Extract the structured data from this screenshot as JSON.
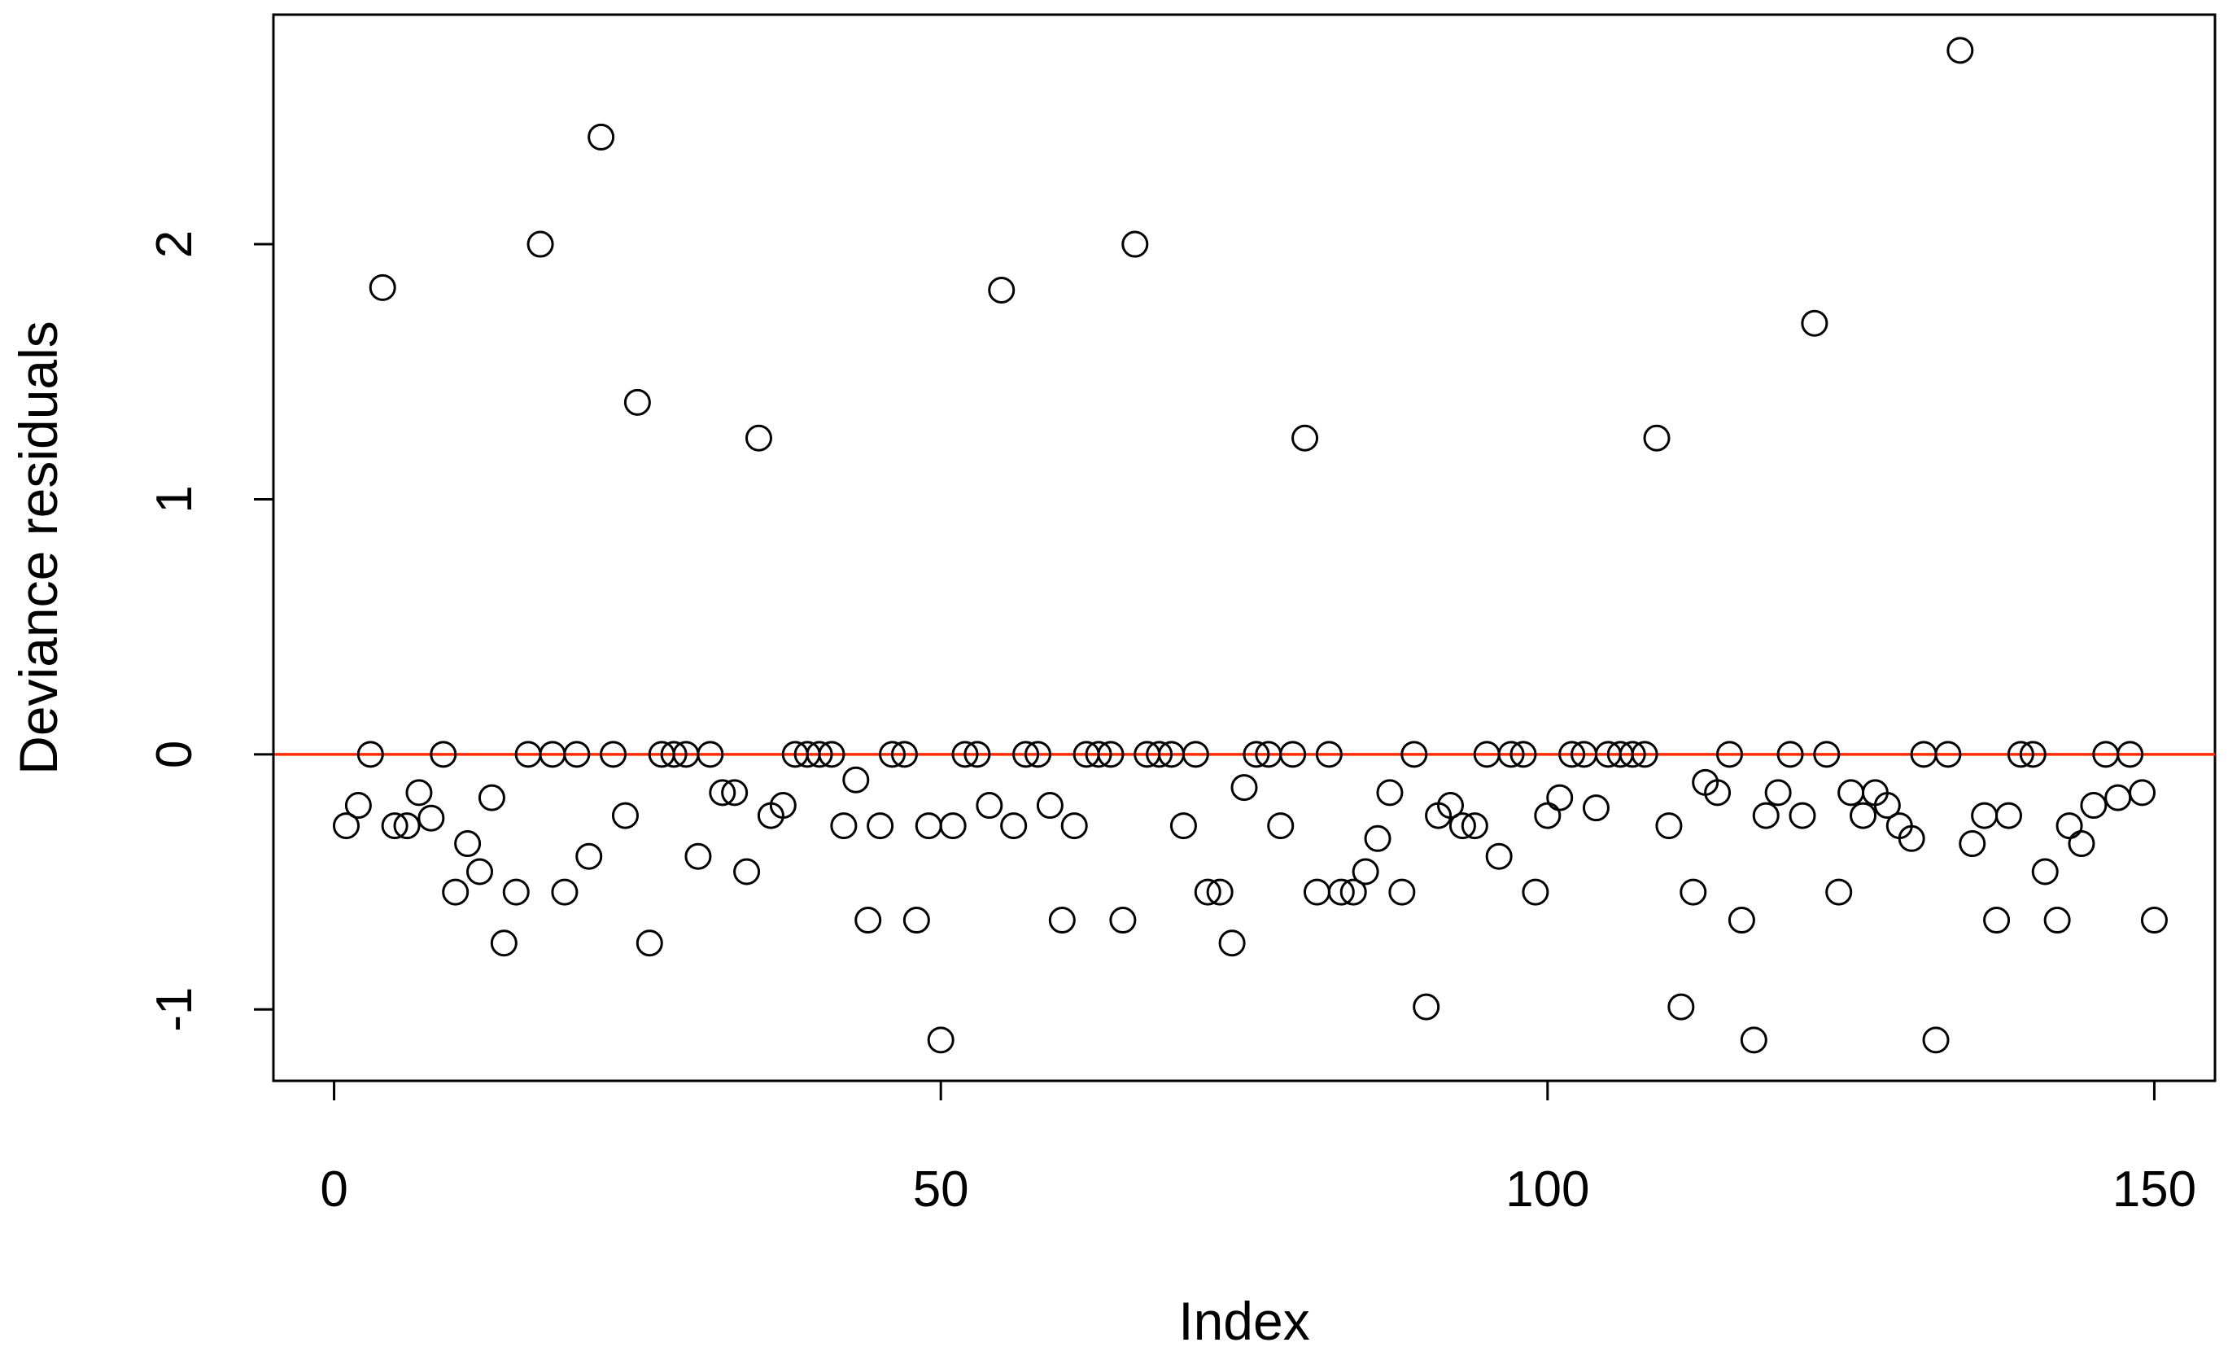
{
  "chart_data": {
    "type": "scatter",
    "xlabel": "Index",
    "ylabel": "Deviance residuals",
    "xlim": [
      -5,
      155
    ],
    "ylim": [
      -1.28,
      2.9
    ],
    "x_ticks": [
      0,
      50,
      100,
      150
    ],
    "x_tick_labels": [
      "0",
      "50",
      "100",
      "150"
    ],
    "y_ticks": [
      -1,
      0,
      1,
      2
    ],
    "y_tick_labels": [
      "-1",
      "0",
      "1",
      "2"
    ],
    "grid": false,
    "marker": "open-circle",
    "reference_line": {
      "y": 0,
      "color": "#ff2a00"
    },
    "point_color": "#000000",
    "x": [
      1,
      2,
      3,
      4,
      5,
      6,
      7,
      8,
      9,
      10,
      11,
      12,
      13,
      14,
      15,
      16,
      17,
      18,
      19,
      20,
      21,
      22,
      23,
      24,
      25,
      26,
      27,
      28,
      29,
      30,
      31,
      32,
      33,
      34,
      35,
      36,
      37,
      38,
      39,
      40,
      41,
      42,
      43,
      44,
      45,
      46,
      47,
      48,
      49,
      50,
      51,
      52,
      53,
      54,
      55,
      56,
      57,
      58,
      59,
      60,
      61,
      62,
      63,
      64,
      65,
      66,
      67,
      68,
      69,
      70,
      71,
      72,
      73,
      74,
      75,
      76,
      77,
      78,
      79,
      80,
      81,
      82,
      83,
      84,
      85,
      86,
      87,
      88,
      89,
      90,
      91,
      92,
      93,
      94,
      95,
      96,
      97,
      98,
      99,
      100,
      101,
      102,
      103,
      104,
      105,
      106,
      107,
      108,
      109,
      110,
      111,
      112,
      113,
      114,
      115,
      116,
      117,
      118,
      119,
      120,
      121,
      122,
      123,
      124,
      125,
      126,
      127,
      128,
      129,
      130,
      131,
      132,
      133,
      134,
      135,
      136,
      137,
      138,
      139,
      140,
      141,
      142,
      143,
      144,
      145,
      146,
      147,
      148,
      149,
      150
    ],
    "y": [
      -0.28,
      -0.2,
      0,
      1.83,
      -0.28,
      -0.28,
      -0.15,
      -0.25,
      0,
      -0.54,
      -0.35,
      -0.46,
      -0.17,
      -0.74,
      -0.54,
      0,
      2.0,
      0,
      -0.54,
      0,
      -0.4,
      2.42,
      0,
      -0.24,
      1.38,
      -0.74,
      0,
      0,
      0,
      -0.4,
      0,
      -0.15,
      -0.15,
      -0.46,
      1.24,
      -0.24,
      -0.2,
      0,
      0,
      0,
      0,
      -0.28,
      -0.1,
      -0.65,
      -0.28,
      0,
      0,
      -0.65,
      -0.28,
      -1.12,
      -0.28,
      0,
      0,
      -0.2,
      1.82,
      -0.28,
      0,
      0,
      -0.2,
      -0.65,
      -0.28,
      0,
      0,
      0,
      -0.65,
      2.0,
      0,
      0,
      0,
      -0.28,
      0,
      -0.54,
      -0.54,
      -0.74,
      -0.13,
      0,
      0,
      -0.28,
      0,
      1.24,
      -0.54,
      0,
      -0.54,
      -0.54,
      -0.46,
      -0.33,
      -0.15,
      -0.54,
      0,
      -0.99,
      -0.24,
      -0.2,
      -0.28,
      -0.28,
      0,
      -0.4,
      0,
      0,
      -0.54,
      -0.24,
      -0.17,
      0,
      0,
      -0.21,
      0,
      0,
      0,
      0,
      1.24,
      -0.28,
      -0.99,
      -0.54,
      -0.11,
      -0.15,
      0,
      -0.65,
      -1.12,
      -0.24,
      -0.15,
      0,
      -0.24,
      1.69,
      0,
      -0.54,
      -0.15,
      -0.24,
      -0.15,
      -0.2,
      -0.28,
      -0.33,
      0,
      -1.12,
      0,
      2.76,
      -0.35,
      -0.24,
      -0.65,
      -0.24,
      0,
      0,
      -0.46,
      -0.65,
      -0.28,
      -0.35,
      -0.2,
      0,
      -0.17,
      0,
      -0.15,
      -0.65
    ]
  }
}
